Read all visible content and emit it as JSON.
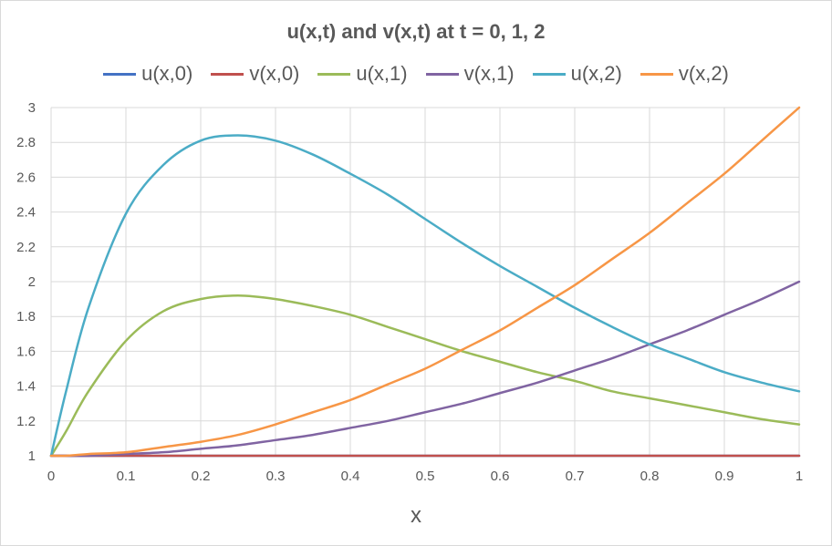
{
  "chart_data": {
    "type": "line",
    "title": "u(x,t) and v(x,t) at t = 0, 1, 2",
    "xlabel": "x",
    "ylabel": "",
    "xlim": [
      0,
      1
    ],
    "ylim": [
      1,
      3
    ],
    "x_ticks": [
      "0",
      "0.1",
      "0.2",
      "0.3",
      "0.4",
      "0.5",
      "0.6",
      "0.7",
      "0.8",
      "0.9",
      "1"
    ],
    "y_ticks": [
      "1",
      "1.2",
      "1.4",
      "1.6",
      "1.8",
      "2",
      "2.2",
      "2.4",
      "2.6",
      "2.8",
      "3"
    ],
    "grid": true,
    "legend_position": "top",
    "x": [
      0,
      0.02,
      0.05,
      0.1,
      0.15,
      0.2,
      0.25,
      0.3,
      0.35,
      0.4,
      0.45,
      0.5,
      0.55,
      0.6,
      0.65,
      0.7,
      0.75,
      0.8,
      0.85,
      0.9,
      0.95,
      1
    ],
    "series": [
      {
        "name": "u(x,0)",
        "color": "#4472c4",
        "values": [
          1,
          1,
          1,
          1,
          1,
          1,
          1,
          1,
          1,
          1,
          1,
          1,
          1,
          1,
          1,
          1,
          1,
          1,
          1,
          1,
          1,
          1
        ]
      },
      {
        "name": "v(x,0)",
        "color": "#c0504d",
        "values": [
          1,
          1,
          1,
          1,
          1,
          1,
          1,
          1,
          1,
          1,
          1,
          1,
          1,
          1,
          1,
          1,
          1,
          1,
          1,
          1,
          1,
          1
        ]
      },
      {
        "name": "u(x,1)",
        "color": "#9bbb59",
        "values": [
          1,
          1.14,
          1.37,
          1.66,
          1.83,
          1.9,
          1.92,
          1.9,
          1.86,
          1.81,
          1.74,
          1.67,
          1.6,
          1.54,
          1.48,
          1.43,
          1.37,
          1.33,
          1.29,
          1.25,
          1.21,
          1.18
        ]
      },
      {
        "name": "v(x,1)",
        "color": "#8064a2",
        "values": [
          1,
          1,
          1,
          1.01,
          1.02,
          1.04,
          1.06,
          1.09,
          1.12,
          1.16,
          1.2,
          1.25,
          1.3,
          1.36,
          1.42,
          1.49,
          1.56,
          1.64,
          1.72,
          1.81,
          1.9,
          2
        ]
      },
      {
        "name": "u(x,2)",
        "color": "#4bacc6",
        "values": [
          1,
          1.37,
          1.85,
          2.39,
          2.67,
          2.81,
          2.84,
          2.81,
          2.73,
          2.62,
          2.5,
          2.36,
          2.22,
          2.09,
          1.97,
          1.85,
          1.74,
          1.64,
          1.56,
          1.48,
          1.42,
          1.37
        ]
      },
      {
        "name": "v(x,2)",
        "color": "#f79646",
        "values": [
          1,
          1,
          1.01,
          1.02,
          1.05,
          1.08,
          1.12,
          1.18,
          1.25,
          1.32,
          1.41,
          1.5,
          1.61,
          1.72,
          1.85,
          1.98,
          2.13,
          2.28,
          2.45,
          2.62,
          2.81,
          3
        ]
      }
    ]
  }
}
